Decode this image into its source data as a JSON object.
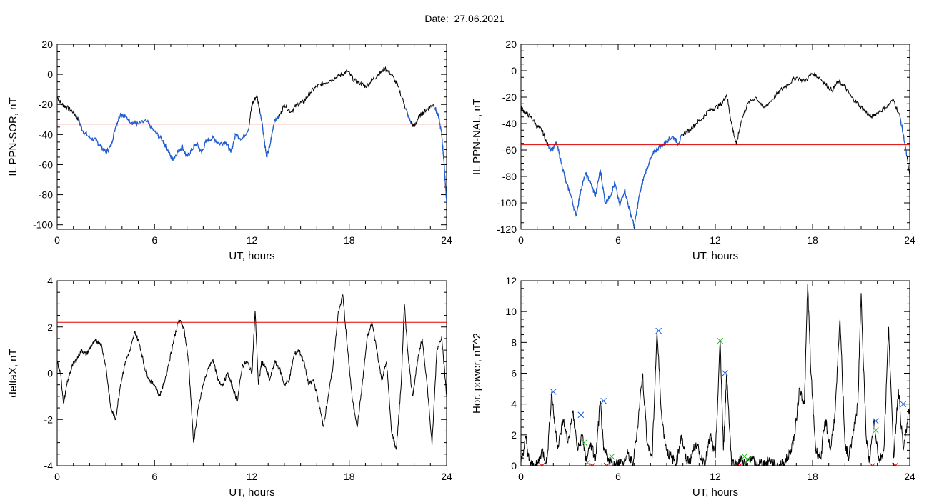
{
  "title": "Date:  27.06.2021",
  "colors": {
    "line": "#000000",
    "threshold": "#e00000",
    "highlight": "#1f5fd8",
    "marker_blue": "#1f5fd8",
    "marker_green": "#22bb22",
    "marker_red": "#e00000"
  },
  "chart_data": [
    {
      "id": "sor",
      "type": "line",
      "title": "",
      "xlabel": "UT, hours",
      "ylabel": "IL PPN-SOR, nT",
      "xlim": [
        0,
        24
      ],
      "ylim": [
        -103,
        20
      ],
      "xticks": [
        0,
        6,
        12,
        18,
        24
      ],
      "yticks": [
        -100,
        -80,
        -60,
        -40,
        -20,
        0,
        20
      ],
      "threshold": -33,
      "grid": false,
      "x": [
        0,
        0.3,
        0.6,
        1.0,
        1.3,
        1.6,
        2.0,
        2.4,
        2.7,
        3.0,
        3.3,
        3.6,
        3.9,
        4.2,
        4.6,
        5.0,
        5.5,
        6.0,
        6.5,
        6.8,
        7.1,
        7.4,
        7.7,
        8.0,
        8.3,
        8.6,
        8.9,
        9.2,
        9.6,
        10.0,
        10.4,
        10.7,
        11.0,
        11.4,
        11.8,
        12.0,
        12.3,
        12.6,
        12.9,
        13.1,
        13.4,
        13.7,
        14.0,
        14.4,
        14.8,
        15.2,
        15.6,
        16.0,
        16.4,
        16.8,
        17.2,
        17.6,
        17.9,
        18.3,
        18.7,
        19.0,
        19.4,
        19.8,
        20.2,
        20.6,
        21.0,
        21.4,
        21.7,
        22.0,
        22.3,
        22.6,
        22.9,
        23.2,
        23.5,
        23.7,
        23.85,
        24.0
      ],
      "y": [
        -15,
        -20,
        -22,
        -25,
        -30,
        -38,
        -42,
        -44,
        -48,
        -52,
        -48,
        -35,
        -26,
        -28,
        -32,
        -33,
        -31,
        -38,
        -44,
        -50,
        -57,
        -52,
        -48,
        -55,
        -50,
        -46,
        -52,
        -44,
        -42,
        -46,
        -45,
        -52,
        -40,
        -43,
        -36,
        -20,
        -14,
        -30,
        -55,
        -48,
        -30,
        -28,
        -20,
        -25,
        -20,
        -18,
        -12,
        -8,
        -6,
        -4,
        -2,
        0,
        2,
        -4,
        -6,
        -8,
        -4,
        0,
        4,
        0,
        -8,
        -20,
        -30,
        -35,
        -28,
        -25,
        -22,
        -20,
        -28,
        -40,
        -60,
        -85
      ],
      "highlight_ranges": [
        [
          1.3,
          11.8
        ],
        [
          12.5,
          13.7
        ],
        [
          21.5,
          21.8
        ],
        [
          23.2,
          24.0
        ]
      ]
    },
    {
      "id": "nal",
      "type": "line",
      "title": "",
      "xlabel": "UT, hours",
      "ylabel": "IL PPN-NAL, nT",
      "xlim": [
        0,
        24
      ],
      "ylim": [
        -120,
        20
      ],
      "xticks": [
        0,
        6,
        12,
        18,
        24
      ],
      "yticks": [
        -120,
        -100,
        -80,
        -60,
        -40,
        -20,
        0,
        20
      ],
      "threshold": -56,
      "grid": false,
      "x": [
        0,
        0.3,
        0.6,
        1.0,
        1.3,
        1.6,
        1.9,
        2.2,
        2.5,
        2.8,
        3.1,
        3.4,
        3.7,
        4.0,
        4.3,
        4.6,
        4.9,
        5.2,
        5.5,
        5.8,
        6.1,
        6.4,
        6.7,
        7.0,
        7.3,
        7.6,
        7.9,
        8.2,
        8.5,
        8.8,
        9.1,
        9.4,
        9.7,
        10.0,
        10.4,
        10.8,
        11.2,
        11.6,
        12.0,
        12.4,
        12.7,
        13.0,
        13.3,
        13.6,
        14.0,
        14.5,
        15.0,
        15.5,
        16.0,
        16.5,
        17.0,
        17.5,
        18.0,
        18.4,
        18.8,
        19.2,
        19.6,
        20.0,
        20.4,
        20.8,
        21.2,
        21.6,
        22.0,
        22.5,
        23.0,
        23.4,
        23.7,
        24.0
      ],
      "y": [
        -28,
        -32,
        -35,
        -42,
        -45,
        -55,
        -60,
        -55,
        -70,
        -85,
        -95,
        -110,
        -90,
        -78,
        -85,
        -95,
        -75,
        -100,
        -95,
        -85,
        -102,
        -90,
        -105,
        -118,
        -95,
        -80,
        -70,
        -62,
        -58,
        -56,
        -52,
        -50,
        -55,
        -48,
        -45,
        -40,
        -36,
        -30,
        -28,
        -25,
        -18,
        -40,
        -56,
        -38,
        -25,
        -20,
        -28,
        -22,
        -15,
        -10,
        -5,
        -8,
        -2,
        -5,
        -10,
        -15,
        -8,
        -12,
        -20,
        -25,
        -30,
        -35,
        -32,
        -28,
        -22,
        -35,
        -55,
        -80
      ],
      "highlight_ranges": [
        [
          1.7,
          10.0
        ],
        [
          23.3,
          23.8
        ]
      ]
    },
    {
      "id": "deltax",
      "type": "line",
      "title": "",
      "xlabel": "UT, hours",
      "ylabel": "deltaX, nT",
      "xlim": [
        0,
        24
      ],
      "ylim": [
        -4,
        4
      ],
      "xticks": [
        0,
        6,
        12,
        18,
        24
      ],
      "yticks": [
        -4,
        -2,
        0,
        2,
        4
      ],
      "threshold": 2.2,
      "grid": false,
      "x": [
        0,
        0.2,
        0.4,
        0.6,
        0.9,
        1.2,
        1.5,
        1.8,
        2.1,
        2.4,
        2.7,
        3.0,
        3.3,
        3.6,
        3.9,
        4.2,
        4.5,
        4.8,
        5.1,
        5.4,
        5.7,
        6.0,
        6.3,
        6.6,
        6.9,
        7.2,
        7.5,
        7.8,
        8.1,
        8.4,
        8.7,
        9.0,
        9.3,
        9.6,
        9.9,
        10.2,
        10.5,
        10.8,
        11.1,
        11.4,
        11.7,
        12.0,
        12.2,
        12.4,
        12.6,
        12.8,
        13.1,
        13.4,
        13.7,
        14.0,
        14.3,
        14.6,
        14.9,
        15.2,
        15.5,
        15.8,
        16.1,
        16.4,
        16.7,
        17.0,
        17.3,
        17.6,
        17.9,
        18.2,
        18.5,
        18.8,
        19.1,
        19.4,
        19.7,
        20.0,
        20.3,
        20.6,
        20.9,
        21.2,
        21.4,
        21.6,
        21.9,
        22.2,
        22.5,
        22.8,
        23.1,
        23.4,
        23.7,
        24.0
      ],
      "y": [
        0.5,
        0,
        -1.3,
        -0.5,
        0.3,
        0.6,
        1.0,
        0.8,
        1.2,
        1.4,
        1.3,
        0.3,
        -1.5,
        -2.0,
        -0.5,
        0.5,
        1.0,
        1.8,
        1.2,
        0.2,
        -0.3,
        -0.5,
        -1.0,
        -0.4,
        0.5,
        1.5,
        2.3,
        2.0,
        0.5,
        -3.0,
        -1.5,
        -0.5,
        0.2,
        0.6,
        -0.3,
        -0.5,
        0.0,
        -0.6,
        -1.2,
        0.3,
        0.5,
        0.0,
        2.7,
        -0.5,
        0.5,
        0.3,
        -0.3,
        0.5,
        0.2,
        -0.5,
        -0.3,
        0.8,
        1.0,
        0.5,
        -0.5,
        -0.3,
        -1.2,
        -2.3,
        -1.0,
        0.3,
        2.5,
        3.4,
        1.0,
        -1.2,
        -2.3,
        -0.5,
        1.5,
        2.2,
        1.0,
        -0.3,
        0.5,
        -2.5,
        -3.3,
        -0.5,
        3.0,
        1.0,
        -1.0,
        0.5,
        1.5,
        -0.5,
        -3.1,
        1.0,
        1.6,
        -1.0
      ]
    },
    {
      "id": "power",
      "type": "line",
      "title": "",
      "xlabel": "UT, hours",
      "ylabel": "Hor. power, nT^2",
      "xlim": [
        0,
        24
      ],
      "ylim": [
        0,
        12
      ],
      "xticks": [
        0,
        6,
        12,
        18,
        24
      ],
      "yticks": [
        0,
        2,
        4,
        6,
        8,
        10,
        12
      ],
      "threshold": null,
      "grid": false,
      "x": [
        0,
        0.3,
        0.5,
        0.7,
        1.0,
        1.3,
        1.6,
        1.9,
        2.1,
        2.3,
        2.6,
        2.9,
        3.2,
        3.5,
        3.8,
        4.0,
        4.3,
        4.6,
        4.9,
        5.1,
        5.4,
        5.7,
        6.0,
        6.3,
        6.6,
        6.9,
        7.2,
        7.5,
        7.8,
        8.1,
        8.4,
        8.7,
        9.0,
        9.3,
        9.6,
        9.9,
        10.2,
        10.5,
        10.8,
        11.1,
        11.4,
        11.7,
        12.0,
        12.3,
        12.5,
        12.7,
        13.0,
        13.3,
        13.6,
        13.9,
        14.2,
        14.5,
        14.8,
        15.1,
        15.4,
        15.7,
        16.0,
        16.3,
        16.6,
        16.9,
        17.2,
        17.5,
        17.7,
        17.9,
        18.2,
        18.5,
        18.8,
        19.1,
        19.4,
        19.7,
        20.0,
        20.2,
        20.5,
        20.8,
        21.0,
        21.3,
        21.5,
        21.8,
        22.1,
        22.4,
        22.7,
        23.0,
        23.3,
        23.6,
        24.0
      ],
      "y": [
        0.2,
        1.8,
        0.3,
        0,
        0,
        1.0,
        0.2,
        4.8,
        2.5,
        1.2,
        3.0,
        1.5,
        3.5,
        1.0,
        2.0,
        0.3,
        1.5,
        0.3,
        4.2,
        1.0,
        0.5,
        0,
        0.3,
        0.1,
        0.8,
        0,
        2.5,
        6.0,
        1.5,
        0.5,
        8.7,
        3.0,
        1.0,
        0.5,
        0.2,
        2.0,
        0.3,
        0.5,
        1.5,
        0.5,
        0.3,
        2.0,
        0.5,
        8.1,
        1.0,
        6.0,
        0.2,
        0.1,
        0.5,
        0,
        0.6,
        0,
        0.2,
        0.1,
        0.4,
        0,
        0.1,
        0.2,
        0.8,
        2.0,
        5.0,
        4.0,
        11.8,
        6.0,
        1.0,
        0.5,
        3.0,
        1.0,
        3.5,
        9.5,
        1.5,
        0.5,
        2.0,
        4.0,
        11.2,
        2.0,
        0.2,
        3.0,
        0.3,
        1.0,
        9.0,
        0.5,
        5.0,
        1.0,
        3.8
      ],
      "markers": [
        {
          "x": 2.0,
          "y": 4.8,
          "color": "blue"
        },
        {
          "x": 3.7,
          "y": 3.3,
          "color": "blue"
        },
        {
          "x": 5.1,
          "y": 4.2,
          "color": "blue"
        },
        {
          "x": 8.5,
          "y": 8.75,
          "color": "blue"
        },
        {
          "x": 12.6,
          "y": 6.0,
          "color": "blue"
        },
        {
          "x": 21.9,
          "y": 2.9,
          "color": "blue"
        },
        {
          "x": 23.6,
          "y": 4.0,
          "color": "blue"
        },
        {
          "x": 12.3,
          "y": 8.1,
          "color": "green"
        },
        {
          "x": 3.9,
          "y": 1.5,
          "color": "green"
        },
        {
          "x": 4.1,
          "y": 0.2,
          "color": "green"
        },
        {
          "x": 5.6,
          "y": 0.6,
          "color": "green"
        },
        {
          "x": 13.8,
          "y": 0.6,
          "color": "green"
        },
        {
          "x": 14.0,
          "y": 0.4,
          "color": "green"
        },
        {
          "x": 21.9,
          "y": 2.3,
          "color": "green"
        },
        {
          "x": 1.3,
          "y": 0.0,
          "color": "red"
        },
        {
          "x": 4.4,
          "y": 0.0,
          "color": "red"
        },
        {
          "x": 5.3,
          "y": 0.0,
          "color": "red"
        },
        {
          "x": 13.5,
          "y": 0.0,
          "color": "red"
        },
        {
          "x": 21.7,
          "y": 0.0,
          "color": "red"
        },
        {
          "x": 23.1,
          "y": 0.0,
          "color": "red"
        }
      ]
    }
  ]
}
